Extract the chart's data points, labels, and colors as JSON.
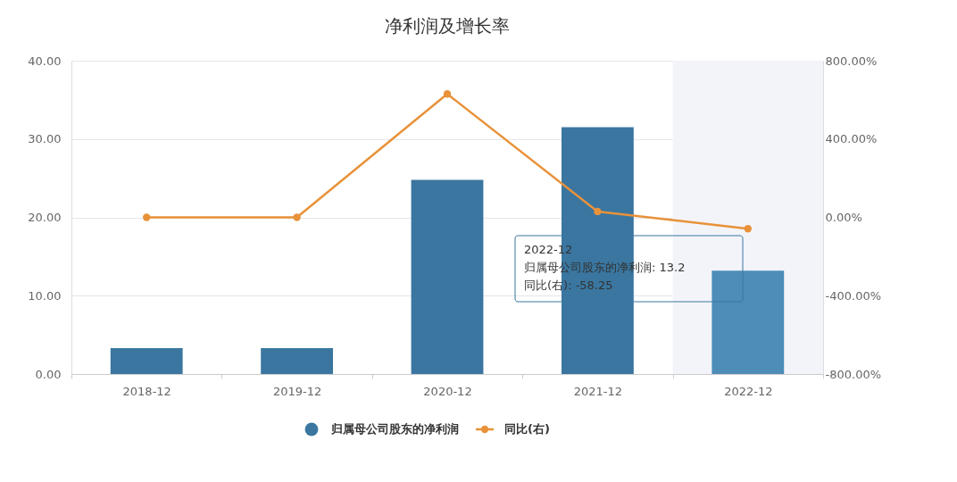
{
  "chart_data": {
    "type": "bar",
    "title": "净利润及增长率",
    "categories": [
      "2018-12",
      "2019-12",
      "2020-12",
      "2021-12",
      "2022-12"
    ],
    "series": [
      {
        "name": "归属母公司股东的净利润",
        "color": "#3a76a0",
        "colors": [
          "#3a76a0",
          "#3a76a0",
          "#3a76a0",
          "#3a76a0",
          "#4d8db7"
        ],
        "values": [
          3.3,
          3.3,
          24.8,
          31.5,
          13.2
        ]
      },
      {
        "name": "同比(右)",
        "type": "line",
        "axis": "y2",
        "color": "#e8923a",
        "values": [
          0,
          0,
          630,
          30,
          -58.25
        ]
      }
    ],
    "ylim": [
      0,
      40
    ],
    "yticks": [
      {
        "value": 0,
        "label": "0.00"
      },
      {
        "value": 10,
        "label": "10.00"
      },
      {
        "value": 20,
        "label": "20.00"
      },
      {
        "value": 30,
        "label": "30.00"
      },
      {
        "value": 40,
        "label": "40.00"
      }
    ],
    "y2lim": [
      -800,
      800
    ],
    "y2ticks": [
      {
        "value": -800,
        "label": "-800.00%"
      },
      {
        "value": -400,
        "label": "-400.00%"
      },
      {
        "value": 0,
        "label": "0.00%"
      },
      {
        "value": 400,
        "label": "400.00%"
      },
      {
        "value": 800,
        "label": "800.00%"
      }
    ],
    "bands": [
      {
        "axis": "x",
        "from": "2022-12",
        "to": "2022-12",
        "color": "#f3f4f9"
      }
    ],
    "annotations": [
      "2022-12",
      "归属母公司股东的净利润: 13.2",
      "同比(右): -58.25"
    ],
    "grid": "y",
    "legend": "bottom",
    "marker": "circle",
    "line_style": "solid"
  }
}
